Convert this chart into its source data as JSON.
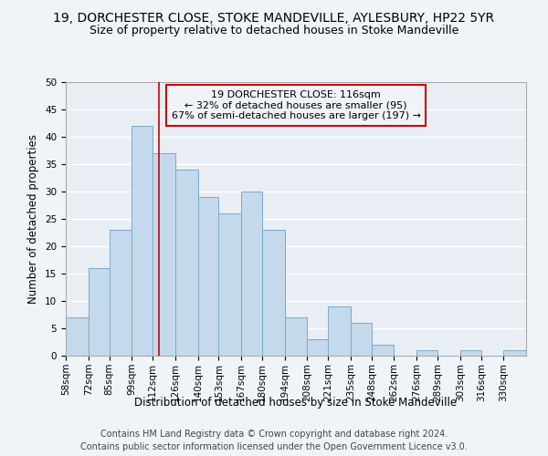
{
  "title": "19, DORCHESTER CLOSE, STOKE MANDEVILLE, AYLESBURY, HP22 5YR",
  "subtitle": "Size of property relative to detached houses in Stoke Mandeville",
  "xlabel": "Distribution of detached houses by size in Stoke Mandeville",
  "ylabel": "Number of detached properties",
  "bin_labels": [
    "58sqm",
    "72sqm",
    "85sqm",
    "99sqm",
    "112sqm",
    "126sqm",
    "140sqm",
    "153sqm",
    "167sqm",
    "180sqm",
    "194sqm",
    "208sqm",
    "221sqm",
    "235sqm",
    "248sqm",
    "262sqm",
    "276sqm",
    "289sqm",
    "303sqm",
    "316sqm",
    "330sqm"
  ],
  "bin_edges": [
    58,
    72,
    85,
    99,
    112,
    126,
    140,
    153,
    167,
    180,
    194,
    208,
    221,
    235,
    248,
    262,
    276,
    289,
    303,
    316,
    330,
    344
  ],
  "counts": [
    7,
    16,
    23,
    42,
    37,
    34,
    29,
    26,
    30,
    23,
    7,
    3,
    9,
    6,
    2,
    0,
    1,
    0,
    1,
    0,
    1
  ],
  "bar_color": "#c5d9ec",
  "bar_edge_color": "#7aaac8",
  "property_size": 116,
  "vline_color": "#cc0000",
  "annotation_line1": "19 DORCHESTER CLOSE: 116sqm",
  "annotation_line2": "← 32% of detached houses are smaller (95)",
  "annotation_line3": "67% of semi-detached houses are larger (197) →",
  "annotation_box_edgecolor": "#cc0000",
  "ylim": [
    0,
    50
  ],
  "yticks": [
    0,
    5,
    10,
    15,
    20,
    25,
    30,
    35,
    40,
    45,
    50
  ],
  "footer_line1": "Contains HM Land Registry data © Crown copyright and database right 2024.",
  "footer_line2": "Contains public sector information licensed under the Open Government Licence v3.0.",
  "background_color": "#f0f4f8",
  "plot_bg_color": "#e8eef4",
  "grid_color": "#ffffff",
  "title_fontsize": 10,
  "subtitle_fontsize": 9,
  "axis_label_fontsize": 8.5,
  "tick_fontsize": 7.5,
  "annotation_fontsize": 8,
  "footer_fontsize": 7
}
